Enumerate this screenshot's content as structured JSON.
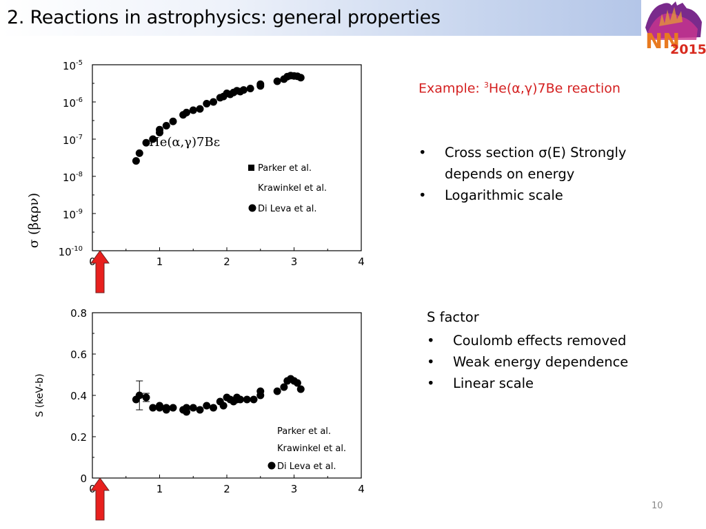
{
  "slide": {
    "title": "2. Reactions in astrophysics: general properties",
    "page_number": "10",
    "logo_text": "NN 2015"
  },
  "right_panel": {
    "example_prefix": "Example: ",
    "example_sup": "3",
    "example_suffix": "He(α,γ)7Be reaction",
    "bullets_top": [
      "Cross section σ(E) Strongly depends on energy",
      "Logarithmic scale"
    ],
    "s_factor_heading": "S factor",
    "bullets_bottom": [
      "Coulomb effects removed",
      "Weak energy dependence",
      "Linear scale"
    ]
  },
  "colors": {
    "marker": "#000000",
    "arrow": "#e8201e",
    "example_text": "#d42020"
  },
  "chart_data": [
    {
      "type": "scatter",
      "scale": "log",
      "ylabel": "σ (βαρν)",
      "xlim": [
        0,
        4
      ],
      "ylim_exp": [
        -10,
        -5
      ],
      "x_ticks": [
        "0",
        "1",
        "2",
        "3",
        "4"
      ],
      "y_ticks": [
        {
          "base": "10",
          "exp": "-10"
        },
        {
          "base": "10",
          "exp": "-9"
        },
        {
          "base": "10",
          "exp": "-8"
        },
        {
          "base": "10",
          "exp": "-7"
        },
        {
          "base": "10",
          "exp": "-6"
        },
        {
          "base": "10",
          "exp": "-5"
        }
      ],
      "annotation": "He(α,γ)7Bε",
      "legend": [
        "Parker et al.",
        "Krawinkel et al.",
        "Di Leva et al."
      ],
      "series": [
        {
          "name": "Di Leva et al.",
          "x": [
            0.65,
            0.7,
            0.8,
            0.9,
            1.0,
            1.0,
            1.1,
            1.2,
            1.35,
            1.4,
            1.5,
            1.6,
            1.7,
            1.8,
            1.9,
            1.95,
            2.0,
            2.05,
            2.1,
            2.15,
            2.2,
            2.25,
            2.35,
            2.5,
            2.5,
            2.75,
            2.85,
            2.9,
            2.95,
            3.0,
            3.05,
            3.1
          ],
          "y": [
            2.6e-08,
            4.2e-08,
            8e-08,
            1e-07,
            1.5e-07,
            1.8e-07,
            2.3e-07,
            3e-07,
            4.5e-07,
            5.2e-07,
            6e-07,
            6.5e-07,
            9e-07,
            1e-06,
            1.3e-06,
            1.4e-06,
            1.7e-06,
            1.6e-06,
            1.8e-06,
            2e-06,
            1.9e-06,
            2.1e-06,
            2.3e-06,
            2.7e-06,
            3e-06,
            3.6e-06,
            4.1e-06,
            4.8e-06,
            5.1e-06,
            5e-06,
            4.9e-06,
            4.5e-06
          ]
        }
      ]
    },
    {
      "type": "scatter",
      "scale": "linear",
      "ylabel": "S (keV-b)",
      "xlim": [
        0,
        4
      ],
      "ylim": [
        0,
        0.8
      ],
      "x_ticks": [
        "0",
        "1",
        "2",
        "3",
        "4"
      ],
      "y_ticks": [
        "0",
        "0.2",
        "0.4",
        "0.6",
        "0.8"
      ],
      "legend": [
        "Parker et al.",
        "Krawinkel et al.",
        "Di Leva et al."
      ],
      "series": [
        {
          "name": "Di Leva et al.",
          "x": [
            0.65,
            0.7,
            0.8,
            0.9,
            1.0,
            1.0,
            1.1,
            1.1,
            1.2,
            1.35,
            1.4,
            1.4,
            1.5,
            1.6,
            1.7,
            1.8,
            1.9,
            1.95,
            2.0,
            2.05,
            2.1,
            2.15,
            2.15,
            2.2,
            2.3,
            2.4,
            2.5,
            2.5,
            2.75,
            2.85,
            2.9,
            2.95,
            3.0,
            3.05,
            3.1
          ],
          "y": [
            0.38,
            0.4,
            0.39,
            0.34,
            0.35,
            0.34,
            0.34,
            0.33,
            0.34,
            0.33,
            0.32,
            0.34,
            0.34,
            0.33,
            0.35,
            0.34,
            0.37,
            0.35,
            0.39,
            0.38,
            0.37,
            0.39,
            0.38,
            0.38,
            0.38,
            0.38,
            0.4,
            0.42,
            0.42,
            0.44,
            0.47,
            0.48,
            0.47,
            0.46,
            0.43
          ]
        }
      ],
      "error_bars": [
        {
          "x": 0.7,
          "low": 0.33,
          "high": 0.47
        },
        {
          "x": 0.8,
          "low": 0.37,
          "high": 0.41
        }
      ]
    }
  ]
}
